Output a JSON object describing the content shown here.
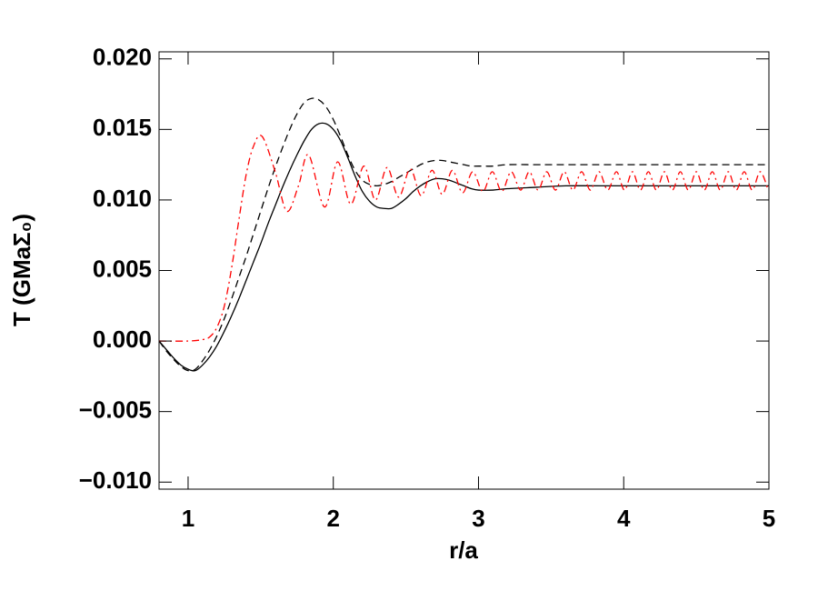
{
  "chart_data": {
    "type": "line",
    "xlabel": "r/a",
    "ylabel": "T (GMaΣ₀)",
    "xlim": [
      0.8,
      5
    ],
    "ylim": [
      -0.0105,
      0.0205
    ],
    "xticks": [
      1,
      2,
      3,
      4,
      5
    ],
    "yticks": [
      {
        "value": 0.02,
        "label": "0.020"
      },
      {
        "value": 0.015,
        "label": "0.015"
      },
      {
        "value": 0.01,
        "label": "0.010"
      },
      {
        "value": 0.005,
        "label": "0.005"
      },
      {
        "value": 0,
        "label": "0.000"
      },
      {
        "value": -0.005,
        "label": "−0.005"
      },
      {
        "value": -0.01,
        "label": "−0.010"
      }
    ],
    "series": [
      {
        "color": "#000000",
        "dash": "solid",
        "x": [
          0.8,
          0.85,
          0.9,
          0.95,
          1.0,
          1.05,
          1.1,
          1.15,
          1.2,
          1.25,
          1.3,
          1.35,
          1.4,
          1.45,
          1.5,
          1.55,
          1.6,
          1.65,
          1.7,
          1.75,
          1.8,
          1.85,
          1.9,
          1.95,
          2.0,
          2.05,
          2.1,
          2.15,
          2.2,
          2.25,
          2.3,
          2.35,
          2.4,
          2.45,
          2.5,
          2.55,
          2.6,
          2.65,
          2.7,
          2.75,
          2.8,
          2.85,
          2.9,
          2.95,
          3.0,
          3.1,
          3.2,
          3.4,
          3.6,
          4.0,
          4.5,
          5.0
        ],
        "values": [
          0.0,
          -0.0006,
          -0.0012,
          -0.0017,
          -0.002,
          -0.0021,
          -0.0017,
          -0.0011,
          -0.0003,
          0.0007,
          0.0018,
          0.003,
          0.0043,
          0.0056,
          0.0069,
          0.0083,
          0.0096,
          0.0109,
          0.0121,
          0.0132,
          0.0142,
          0.015,
          0.0154,
          0.0154,
          0.015,
          0.0142,
          0.013,
          0.0117,
          0.0106,
          0.0099,
          0.0095,
          0.0094,
          0.0094,
          0.0097,
          0.0101,
          0.0106,
          0.011,
          0.0113,
          0.0115,
          0.0115,
          0.0114,
          0.0112,
          0.011,
          0.0108,
          0.0107,
          0.0107,
          0.0108,
          0.0109,
          0.011,
          0.011,
          0.011,
          0.011
        ]
      },
      {
        "color": "#000000",
        "dash": "dashed",
        "x": [
          0.8,
          0.85,
          0.9,
          0.95,
          1.0,
          1.05,
          1.1,
          1.15,
          1.2,
          1.25,
          1.3,
          1.35,
          1.4,
          1.45,
          1.5,
          1.55,
          1.6,
          1.65,
          1.7,
          1.75,
          1.8,
          1.85,
          1.9,
          1.95,
          2.0,
          2.05,
          2.1,
          2.15,
          2.2,
          2.25,
          2.3,
          2.35,
          2.4,
          2.45,
          2.5,
          2.55,
          2.6,
          2.65,
          2.7,
          2.75,
          2.8,
          2.85,
          2.9,
          2.95,
          3.0,
          3.1,
          3.2,
          3.4,
          3.6,
          4.0,
          4.5,
          5.0
        ],
        "values": [
          0.0,
          -0.0007,
          -0.0013,
          -0.0018,
          -0.0021,
          -0.002,
          -0.0014,
          -0.0006,
          0.0004,
          0.0016,
          0.003,
          0.0045,
          0.006,
          0.0076,
          0.0092,
          0.0108,
          0.0123,
          0.0137,
          0.015,
          0.0161,
          0.0169,
          0.0172,
          0.0171,
          0.0166,
          0.0157,
          0.0145,
          0.0132,
          0.0121,
          0.0114,
          0.0111,
          0.011,
          0.0111,
          0.0113,
          0.0116,
          0.0119,
          0.0122,
          0.0125,
          0.0127,
          0.0128,
          0.0128,
          0.0127,
          0.0126,
          0.0125,
          0.0124,
          0.0124,
          0.0124,
          0.0125,
          0.0125,
          0.0125,
          0.0125,
          0.0125,
          0.0125
        ]
      },
      {
        "color": "#ff0000",
        "dash": "dashdot",
        "x": [
          0.8,
          1.0,
          1.1,
          1.15,
          1.2,
          1.25,
          1.3,
          1.35,
          1.4,
          1.45,
          1.51,
          1.6,
          1.68,
          1.76,
          1.83,
          1.94,
          2.03,
          2.12,
          2.21,
          2.29,
          2.37,
          2.45,
          2.53,
          2.605,
          2.68,
          2.75,
          2.82,
          2.89,
          2.96,
          3.03,
          3.095,
          3.16,
          3.225,
          3.29,
          3.35,
          3.41,
          3.47,
          3.53,
          3.59,
          3.65,
          3.71,
          3.77,
          3.83,
          3.89,
          3.95,
          4.005,
          4.06,
          4.115,
          4.17,
          4.225,
          4.28,
          4.335,
          4.39,
          4.445,
          4.5,
          4.555,
          4.61,
          4.665,
          4.72,
          4.775,
          4.83,
          4.885,
          4.94,
          4.995
        ],
        "values": [
          0.0,
          0.0,
          0.0001,
          0.0003,
          0.001,
          0.0025,
          0.0052,
          0.0086,
          0.0118,
          0.0138,
          0.0145,
          0.012,
          0.0092,
          0.011,
          0.0132,
          0.0095,
          0.0127,
          0.0097,
          0.0124,
          0.01,
          0.0123,
          0.0102,
          0.0122,
          0.0103,
          0.0121,
          0.0104,
          0.0121,
          0.0105,
          0.012,
          0.0106,
          0.012,
          0.0106,
          0.012,
          0.0107,
          0.012,
          0.0107,
          0.012,
          0.0107,
          0.012,
          0.0107,
          0.012,
          0.0107,
          0.012,
          0.0107,
          0.012,
          0.0107,
          0.012,
          0.0107,
          0.012,
          0.0107,
          0.012,
          0.0107,
          0.012,
          0.0107,
          0.012,
          0.0107,
          0.012,
          0.0107,
          0.012,
          0.0107,
          0.012,
          0.0107,
          0.012,
          0.0107
        ]
      }
    ]
  }
}
